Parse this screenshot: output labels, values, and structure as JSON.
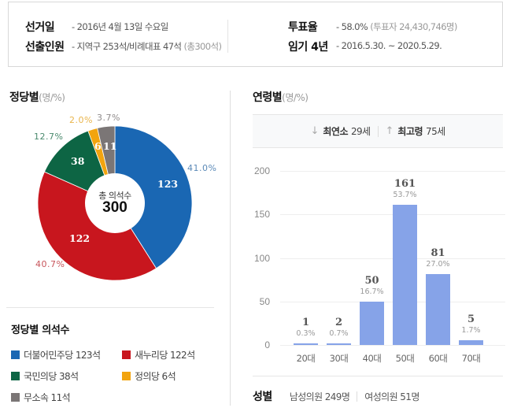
{
  "info": {
    "election_date_label": "선거일",
    "election_date_value": "- 2016년 4월 13일 수요일",
    "seats_label": "선출인원",
    "seats_value": "- 지역구 253석/비례대표 47석",
    "seats_total": "(총300석)",
    "turnout_label": "투표율",
    "turnout_value": "- 58.0%",
    "turnout_voters": "(투표자 24,430,746명)",
    "term_label": "임기 4년",
    "term_value": "- 2016.5.30. ~ 2020.5.29."
  },
  "party_section": {
    "title": "정당별",
    "unit": "(명/%)",
    "center_label": "총 의석수",
    "center_total": "300",
    "legend_title": "정당별 의석수"
  },
  "age_section": {
    "title": "연령별",
    "unit": "(명/%)",
    "min_arrow": "↓",
    "min_label": "최연소",
    "min_value": "29세",
    "max_arrow": "↑",
    "max_label": "최고령",
    "max_value": "75세"
  },
  "gender": {
    "label": "성별",
    "male": "남성의원 249명",
    "female": "여성의원 51명"
  },
  "colors": {
    "minjoo": "#1a67b3",
    "saenuri": "#c8161e",
    "kookmin": "#0d6544",
    "justice": "#f2a40f",
    "independent": "#7b7676",
    "bar": "#86a3e8"
  },
  "chart_data": [
    {
      "type": "pie",
      "title": "정당별(명/%)",
      "center_text": "총 의석수 300",
      "categories": [
        "더불어민주당",
        "새누리당",
        "국민의당",
        "정의당",
        "무소속"
      ],
      "values": [
        123,
        122,
        38,
        6,
        11
      ],
      "percentages": [
        "41.0%",
        "40.7%",
        "12.7%",
        "2.0%",
        "3.7%"
      ],
      "colors": [
        "#1a67b3",
        "#c8161e",
        "#0d6544",
        "#f2a40f",
        "#7b7676"
      ],
      "legend": [
        "더불어민주당 123석",
        "새누리당 122석",
        "국민의당 38석",
        "정의당 6석",
        "무소속 11석"
      ],
      "legend_title": "정당별 의석수",
      "legend_position": "bottom"
    },
    {
      "type": "bar",
      "title": "연령별(명/%)",
      "categories": [
        "20대",
        "30대",
        "40대",
        "50대",
        "60대",
        "70대"
      ],
      "values": [
        1,
        2,
        50,
        161,
        81,
        5
      ],
      "percentages": [
        "0.3%",
        "0.7%",
        "16.7%",
        "53.7%",
        "27.0%",
        "1.7%"
      ],
      "yticks": [
        "0",
        "50",
        "100",
        "150",
        "200"
      ],
      "ylim": [
        0,
        200
      ],
      "grid": true,
      "xlabel": "",
      "ylabel": ""
    }
  ]
}
